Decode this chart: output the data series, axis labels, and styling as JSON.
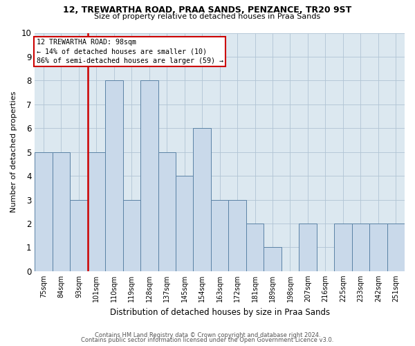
{
  "title": "12, TREWARTHA ROAD, PRAA SANDS, PENZANCE, TR20 9ST",
  "subtitle": "Size of property relative to detached houses in Praa Sands",
  "xlabel": "Distribution of detached houses by size in Praa Sands",
  "ylabel": "Number of detached properties",
  "categories": [
    "75sqm",
    "84sqm",
    "93sqm",
    "101sqm",
    "110sqm",
    "119sqm",
    "128sqm",
    "137sqm",
    "145sqm",
    "154sqm",
    "163sqm",
    "172sqm",
    "181sqm",
    "189sqm",
    "198sqm",
    "207sqm",
    "216sqm",
    "225sqm",
    "233sqm",
    "242sqm",
    "251sqm"
  ],
  "values": [
    5,
    5,
    3,
    5,
    8,
    3,
    8,
    5,
    4,
    6,
    3,
    3,
    2,
    1,
    0,
    2,
    0,
    2,
    2,
    2,
    2
  ],
  "bar_color": "#c9d9ea",
  "bar_edge_color": "#5a82a5",
  "highlight_line_color": "#cc0000",
  "annotation_text": "12 TREWARTHA ROAD: 98sqm\n← 14% of detached houses are smaller (10)\n86% of semi-detached houses are larger (59) →",
  "annotation_box_color": "#cc0000",
  "ylim": [
    0,
    10
  ],
  "yticks": [
    0,
    1,
    2,
    3,
    4,
    5,
    6,
    7,
    8,
    9,
    10
  ],
  "footer1": "Contains HM Land Registry data © Crown copyright and database right 2024.",
  "footer2": "Contains public sector information licensed under the Open Government Licence v3.0.",
  "fig_bg_color": "#ffffff",
  "plot_bg_color": "#dce8f0",
  "grid_color": "#b0c4d4"
}
